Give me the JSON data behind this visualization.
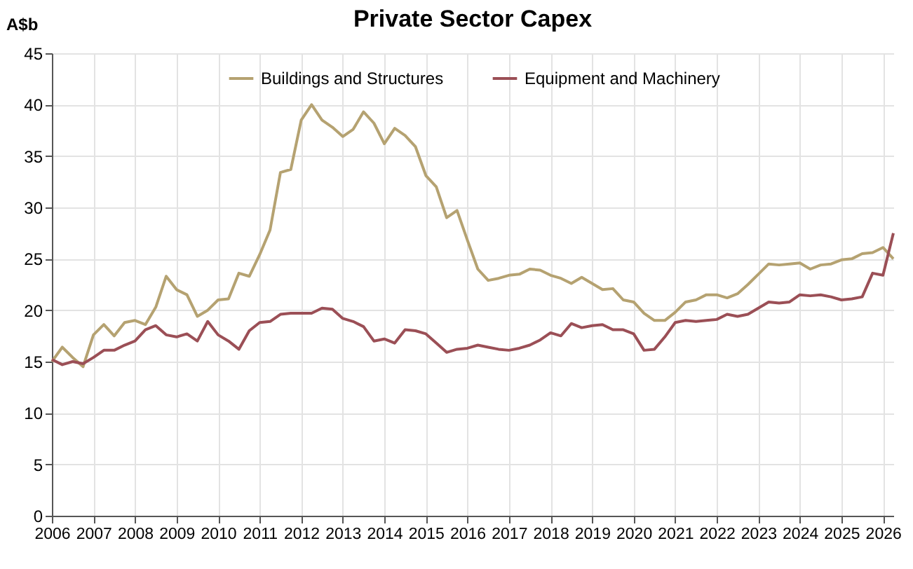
{
  "chart_data": {
    "type": "line",
    "title": "Private Sector Capex",
    "ylabel": "A$b",
    "x": [
      2006,
      2006.25,
      2006.5,
      2006.75,
      2007,
      2007.25,
      2007.5,
      2007.75,
      2008,
      2008.25,
      2008.5,
      2008.75,
      2009,
      2009.25,
      2009.5,
      2009.75,
      2010,
      2010.25,
      2010.5,
      2010.75,
      2011,
      2011.25,
      2011.5,
      2011.75,
      2012,
      2012.25,
      2012.5,
      2012.75,
      2013,
      2013.25,
      2013.5,
      2013.75,
      2014,
      2014.25,
      2014.5,
      2014.75,
      2015,
      2015.25,
      2015.5,
      2015.75,
      2016,
      2016.25,
      2016.5,
      2016.75,
      2017,
      2017.25,
      2017.5,
      2017.75,
      2018,
      2018.25,
      2018.5,
      2018.75,
      2019,
      2019.25,
      2019.5,
      2019.75,
      2020,
      2020.25,
      2020.5,
      2020.75,
      2021,
      2021.25,
      2021.5,
      2021.75,
      2022,
      2022.25,
      2022.5,
      2022.75,
      2023,
      2023.25,
      2023.5,
      2023.75,
      2024,
      2024.25,
      2024.5,
      2024.75,
      2025,
      2025.25,
      2025.5,
      2025.75,
      2026,
      2026.25
    ],
    "series": [
      {
        "name": "Buildings and Structures",
        "color": "#b5a271",
        "values": [
          15,
          16.4,
          15.4,
          14.5,
          17.6,
          18.6,
          17.5,
          18.8,
          19,
          18.6,
          20.3,
          23.3,
          22,
          21.5,
          19.4,
          20,
          21,
          21.1,
          23.6,
          23.3,
          25.4,
          27.8,
          33.4,
          33.7,
          38.5,
          40,
          38.5,
          37.8,
          36.9,
          37.6,
          39.3,
          38.2,
          36.2,
          37.7,
          37,
          35.9,
          33.1,
          32,
          29,
          29.7,
          26.8,
          24,
          22.9,
          23.1,
          23.4,
          23.5,
          24,
          23.9,
          23.4,
          23.1,
          22.6,
          23.2,
          22.6,
          22,
          22.1,
          21,
          20.8,
          19.7,
          19,
          19,
          19.8,
          20.8,
          21,
          21.5,
          21.5,
          21.2,
          21.6,
          22.5,
          23.5,
          24.5,
          24.4,
          24.5,
          24.6,
          24,
          24.4,
          24.5,
          24.9,
          25,
          25.5,
          25.6,
          26.1,
          25
        ]
      },
      {
        "name": "Equipment and Machinery",
        "color": "#9b4f56",
        "values": [
          15.2,
          14.7,
          15,
          14.8,
          15.4,
          16.1,
          16.1,
          16.6,
          17,
          18.1,
          18.5,
          17.6,
          17.4,
          17.7,
          17,
          18.9,
          17.6,
          17,
          16.2,
          18,
          18.8,
          18.9,
          19.6,
          19.7,
          19.7,
          19.7,
          20.2,
          20.1,
          19.2,
          18.9,
          18.4,
          17,
          17.2,
          16.8,
          18.1,
          18,
          17.7,
          16.8,
          15.9,
          16.2,
          16.3,
          16.6,
          16.4,
          16.2,
          16.1,
          16.3,
          16.6,
          17.1,
          17.8,
          17.5,
          18.7,
          18.3,
          18.5,
          18.6,
          18.1,
          18.1,
          17.7,
          16.1,
          16.2,
          17.4,
          18.8,
          19,
          18.9,
          19,
          19.1,
          19.6,
          19.4,
          19.6,
          20.2,
          20.8,
          20.7,
          20.8,
          21.5,
          21.4,
          21.5,
          21.3,
          21,
          21.1,
          21.3,
          23.6,
          23.4,
          27.5
        ]
      }
    ],
    "xlim": [
      2006,
      2026.25
    ],
    "xticks": [
      2006,
      2007,
      2008,
      2009,
      2010,
      2011,
      2012,
      2013,
      2014,
      2015,
      2016,
      2017,
      2018,
      2019,
      2020,
      2021,
      2022,
      2023,
      2024,
      2025,
      2026
    ],
    "ylim": [
      0,
      45
    ],
    "yticks": [
      0,
      5,
      10,
      15,
      20,
      25,
      30,
      35,
      40,
      45
    ],
    "grid": true,
    "legend": "top",
    "line_style": "solid",
    "marker": "none"
  }
}
